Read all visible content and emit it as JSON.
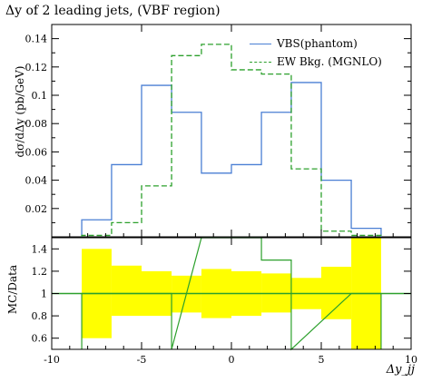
{
  "title": "Δy of 2 leading jets, (VBF region)",
  "y_label_main": "dσ/dΔy (pb/GeV)",
  "y_label_ratio": "MC/Data",
  "x_label": "Δy_jj",
  "legend": [
    {
      "label": "VBS(phantom)",
      "color": "#4a7fd4",
      "style": "solid"
    },
    {
      "label": "EW Bkg. (MGNLO)",
      "color": "#2ca02c",
      "style": "dashed"
    }
  ],
  "colors": {
    "band": "#ffff00",
    "vbs": "#4a7fd4",
    "ew": "#2ca02c",
    "ratio_line": "#2ca02c",
    "unity": "#000000"
  },
  "chart_data": [
    {
      "type": "line",
      "title": "Δy of 2 leading jets, (VBF region)",
      "ylabel": "dσ/dΔy (pb/GeV)",
      "xlim": [
        -10,
        10
      ],
      "ylim": [
        0,
        0.15
      ],
      "y_ticks": [
        "0.02",
        "0.04",
        "0.06",
        "0.08",
        "0.1",
        "0.12",
        "0.14"
      ],
      "bin_edges": [
        -8.33,
        -6.67,
        -5.0,
        -3.33,
        -1.67,
        0.0,
        1.67,
        3.33,
        5.0,
        6.67,
        8.33
      ],
      "series": [
        {
          "name": "VBS(phantom)",
          "style": "solid",
          "values": [
            0.012,
            0.051,
            0.107,
            0.088,
            0.045,
            0.051,
            0.088,
            0.109,
            0.04,
            0.006
          ]
        },
        {
          "name": "EW Bkg. (MGNLO)",
          "style": "dashed",
          "values": [
            0.001,
            0.01,
            0.036,
            0.128,
            0.136,
            0.118,
            0.115,
            0.048,
            0.004,
            0.001
          ]
        }
      ]
    },
    {
      "type": "area",
      "ylabel": "MC/Data",
      "xlabel": "Δy_jj",
      "xlim": [
        -10,
        10
      ],
      "ylim": [
        0.5,
        1.5
      ],
      "x_ticks": [
        "-10",
        "-5",
        "0",
        "5",
        "10"
      ],
      "y_ticks": [
        "0.6",
        "0.8",
        "1",
        "1.2",
        "1.4"
      ],
      "bin_edges": [
        -8.33,
        -6.67,
        -5.0,
        -3.33,
        -1.67,
        0.0,
        1.67,
        3.33,
        5.0,
        6.67,
        8.33
      ],
      "band_upper": [
        1.4,
        1.25,
        1.2,
        1.16,
        1.22,
        1.2,
        1.18,
        1.14,
        1.24,
        1.5
      ],
      "band_lower": [
        0.6,
        0.8,
        0.8,
        0.83,
        0.78,
        0.8,
        0.83,
        0.86,
        0.77,
        0.5
      ],
      "ratio_line": {
        "name": "EW Bkg. (MGNLO)",
        "x": [
          -8.33,
          -8.33,
          -3.33,
          -3.33,
          -1.67,
          1.67,
          1.67,
          3.33,
          3.33,
          6.67,
          8.33,
          8.33
        ],
        "y": [
          0.5,
          1.0,
          1.0,
          0.5,
          1.5,
          1.5,
          1.3,
          1.3,
          0.5,
          1.0,
          1.0,
          0.5
        ]
      },
      "unity_line": 1.0
    }
  ]
}
